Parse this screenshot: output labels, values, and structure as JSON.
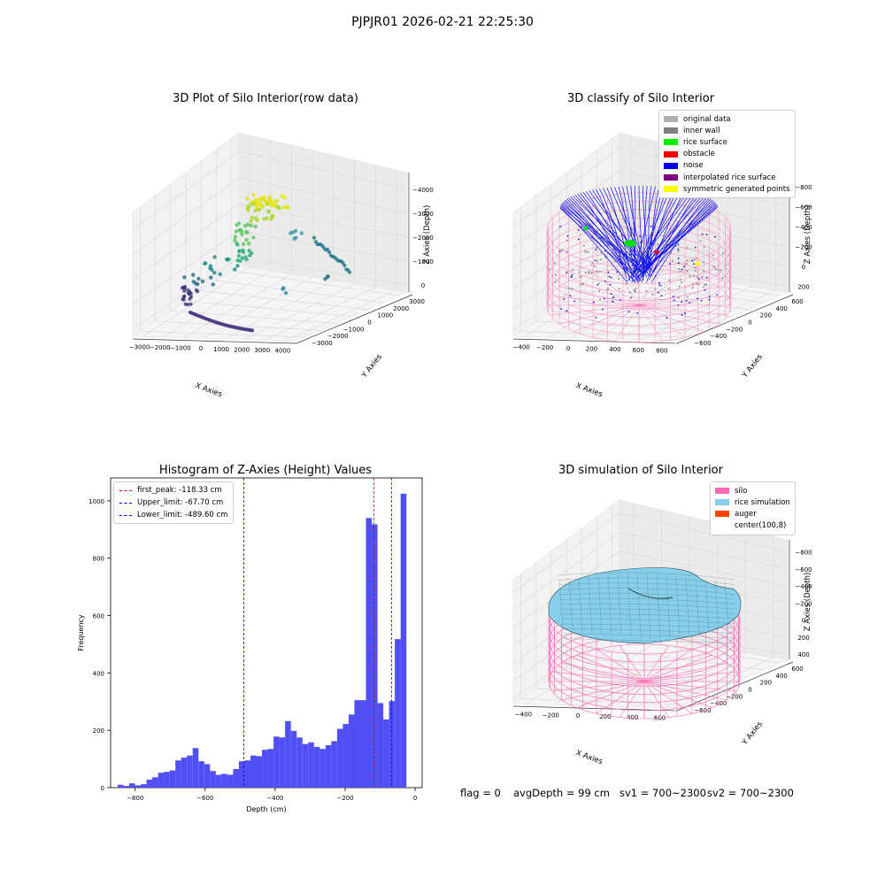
{
  "suptitle": "PJPJR01 2026-02-21 22:25:30",
  "chart_data": [
    {
      "type": "scatter",
      "title": "3D Plot of Silo Interior(row data)",
      "xlabel": "X Axies",
      "ylabel": "Y Axies",
      "zlabel": "Z Axies (Depth)",
      "xticks": [
        "−3000",
        "−2000",
        "−1000",
        "0",
        "1000",
        "2000",
        "3000",
        "4000"
      ],
      "yticks": [
        "−3000",
        "−2000",
        "−1000",
        "0",
        "1000",
        "2000",
        "3000"
      ],
      "zticks": [
        "0",
        "−1000",
        "−2000",
        "−3000",
        "−4000"
      ],
      "xlim": [
        -3000,
        4000
      ],
      "ylim": [
        -3000,
        3000
      ],
      "zlim": [
        -4500,
        0
      ]
    },
    {
      "type": "scatter",
      "title": "3D classify of Silo Interior",
      "xlabel": "X Axies",
      "ylabel": "Y Axies",
      "zlabel": "Z Axies (Depth)",
      "xticks": [
        "−400",
        "−200",
        "0",
        "200",
        "400",
        "600",
        "800"
      ],
      "yticks": [
        "−600",
        "−400",
        "−200",
        "0",
        "200",
        "400",
        "600"
      ],
      "zticks": [
        "200",
        "0",
        "−200",
        "−400",
        "−600",
        "−800"
      ],
      "legend": [
        {
          "label": "original data",
          "color": "#b0b0b0"
        },
        {
          "label": "inner wall",
          "color": "#808080"
        },
        {
          "label": "rice surface",
          "color": "#00ee00"
        },
        {
          "label": "obstacle",
          "color": "#ee0000"
        },
        {
          "label": "noise",
          "color": "#0000ee"
        },
        {
          "label": "interpolated rice surface",
          "color": "#800080"
        },
        {
          "label": "symmetric generated points",
          "color": "#ffff00"
        }
      ]
    },
    {
      "type": "bar",
      "title": "Histogram of Z-Axies (Height) Values",
      "xlabel": "Depth (cm)",
      "ylabel": "Frequency",
      "xlim": [
        -870,
        20
      ],
      "ylim": [
        0,
        1080
      ],
      "xticks": [
        -800,
        -600,
        -400,
        -200,
        0
      ],
      "yticks": [
        0,
        200,
        400,
        600,
        800,
        1000
      ],
      "bin_width": 16.5,
      "bins_start": [
        -850,
        -833.5,
        -817,
        -800.5,
        -784,
        -767.5,
        -751,
        -734.5,
        -718,
        -701.5,
        -685,
        -668.5,
        -652,
        -635.5,
        -619,
        -602.5,
        -586,
        -569.5,
        -553,
        -536.5,
        -520,
        -503.5,
        -487,
        -470.5,
        -454,
        -437.5,
        -421,
        -404.5,
        -388,
        -371.5,
        -355,
        -338.5,
        -322,
        -305.5,
        -289,
        -272.5,
        -256,
        -239.5,
        -223,
        -206.5,
        -190,
        -173.5,
        -157,
        -140.5,
        -124,
        -107.5,
        -91,
        -74.5,
        -58,
        -41.5,
        -25,
        -8.5
      ],
      "values": [
        10,
        6,
        15,
        8,
        12,
        28,
        36,
        52,
        55,
        60,
        95,
        105,
        112,
        138,
        92,
        82,
        58,
        45,
        48,
        45,
        65,
        92,
        95,
        112,
        110,
        132,
        135,
        178,
        175,
        232,
        198,
        175,
        152,
        158,
        142,
        135,
        148,
        162,
        205,
        222,
        255,
        305,
        305,
        940,
        918,
        295,
        238,
        302,
        518,
        1025,
        0,
        0
      ],
      "lines": [
        {
          "label": "first_peak: -118.33 cm",
          "value": -118.33,
          "color": "#dd0000"
        },
        {
          "label": "Upper_limit: -67.70 cm",
          "value": -67.7,
          "color": "#0000dd"
        },
        {
          "label": "Lower_limit: -489.60 cm",
          "value": -489.6,
          "color": "#0000dd"
        }
      ],
      "bar_color": "#4f4ff5"
    },
    {
      "type": "area",
      "title": "3D simulation of Silo Interior",
      "xlabel": "X Axies",
      "ylabel": "Y Axies",
      "zlabel": "Z Axies (Depth)",
      "xticks": [
        "−400",
        "−200",
        "0",
        "200",
        "400",
        "600"
      ],
      "yticks": [
        "−600",
        "−400",
        "−200",
        "0",
        "200",
        "400",
        "600"
      ],
      "zticks": [
        "400",
        "200",
        "0",
        "−200",
        "−400",
        "−600",
        "−800"
      ],
      "legend": [
        {
          "label": "silo",
          "color": "#ff69b4"
        },
        {
          "label": "rice simulation",
          "color": "#87ceeb"
        },
        {
          "label": "auger",
          "color": "#ff4500"
        },
        {
          "label": "center(100,8)",
          "color": "#ffffff"
        }
      ]
    }
  ],
  "status": {
    "flag": "flag = 0",
    "avg": "avgDepth = 99 cm",
    "sv1": "sv1 = 700~2300",
    "sv2": "sv2 = 700~2300"
  }
}
